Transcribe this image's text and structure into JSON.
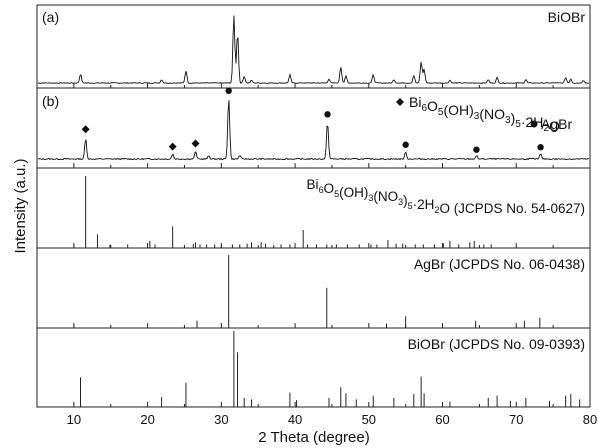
{
  "chart_data": {
    "type": "line",
    "xlabel": "2 Theta (degree)",
    "ylabel": "Intensity (a.u.)",
    "xlim": [
      5,
      80
    ],
    "x_ticks": [
      10,
      20,
      30,
      40,
      50,
      60,
      70,
      80
    ],
    "panels": [
      {
        "panel_label": "(a)",
        "kind": "pattern",
        "name": "BiOBr",
        "peaks": [
          {
            "x": 10.9,
            "y": 0.13
          },
          {
            "x": 21.9,
            "y": 0.05
          },
          {
            "x": 25.2,
            "y": 0.18
          },
          {
            "x": 31.7,
            "y": 1.0
          },
          {
            "x": 32.2,
            "y": 0.75
          },
          {
            "x": 33.1,
            "y": 0.1
          },
          {
            "x": 34.1,
            "y": 0.04
          },
          {
            "x": 39.3,
            "y": 0.12
          },
          {
            "x": 44.6,
            "y": 0.06
          },
          {
            "x": 46.2,
            "y": 0.24
          },
          {
            "x": 46.9,
            "y": 0.1
          },
          {
            "x": 50.6,
            "y": 0.12
          },
          {
            "x": 53.4,
            "y": 0.05
          },
          {
            "x": 56.1,
            "y": 0.11
          },
          {
            "x": 57.1,
            "y": 0.31
          },
          {
            "x": 57.5,
            "y": 0.2
          },
          {
            "x": 61.0,
            "y": 0.04
          },
          {
            "x": 66.2,
            "y": 0.05
          },
          {
            "x": 67.4,
            "y": 0.08
          },
          {
            "x": 71.3,
            "y": 0.05
          },
          {
            "x": 76.7,
            "y": 0.08
          },
          {
            "x": 77.4,
            "y": 0.06
          },
          {
            "x": 79.1,
            "y": 0.04
          }
        ]
      },
      {
        "panel_label": "(b)",
        "kind": "pattern",
        "peaks": [
          {
            "x": 11.6,
            "y": 0.33
          },
          {
            "x": 23.4,
            "y": 0.08
          },
          {
            "x": 26.5,
            "y": 0.12
          },
          {
            "x": 28.3,
            "y": 0.05
          },
          {
            "x": 31.0,
            "y": 1.0
          },
          {
            "x": 32.5,
            "y": 0.06
          },
          {
            "x": 44.4,
            "y": 0.6
          },
          {
            "x": 55.0,
            "y": 0.11
          },
          {
            "x": 64.6,
            "y": 0.05
          },
          {
            "x": 73.3,
            "y": 0.08
          }
        ],
        "markers": [
          {
            "x": 11.6,
            "y": 0.48,
            "symbol": "diamond"
          },
          {
            "x": 23.4,
            "y": 0.2,
            "symbol": "diamond"
          },
          {
            "x": 26.5,
            "y": 0.25,
            "symbol": "diamond"
          },
          {
            "x": 31.0,
            "y": 1.1,
            "symbol": "dot"
          },
          {
            "x": 44.4,
            "y": 0.72,
            "symbol": "dot"
          },
          {
            "x": 55.0,
            "y": 0.23,
            "symbol": "dot"
          },
          {
            "x": 64.6,
            "y": 0.15,
            "symbol": "dot"
          },
          {
            "x": 73.3,
            "y": 0.19,
            "symbol": "dot"
          }
        ],
        "legend": [
          {
            "symbol": "diamond",
            "label": "Bi6O5(OH)3(NO3)5·2H2O"
          },
          {
            "symbol": "dot",
            "label": "AgBr"
          }
        ]
      },
      {
        "kind": "sticks",
        "name": "Bi6O5(OH)3(NO3)5·2H2O (JCPDS No. 54-0627)",
        "sticks": [
          {
            "x": 11.6,
            "y": 1.0
          },
          {
            "x": 13.2,
            "y": 0.19
          },
          {
            "x": 14.9,
            "y": 0.05
          },
          {
            "x": 17.3,
            "y": 0.05
          },
          {
            "x": 20.3,
            "y": 0.1
          },
          {
            "x": 21.0,
            "y": 0.05
          },
          {
            "x": 23.4,
            "y": 0.3
          },
          {
            "x": 26.2,
            "y": 0.06
          },
          {
            "x": 26.5,
            "y": 0.08
          },
          {
            "x": 27.1,
            "y": 0.05
          },
          {
            "x": 28.0,
            "y": 0.05
          },
          {
            "x": 29.1,
            "y": 0.05
          },
          {
            "x": 30.0,
            "y": 0.04
          },
          {
            "x": 31.5,
            "y": 0.05
          },
          {
            "x": 32.5,
            "y": 0.05
          },
          {
            "x": 33.5,
            "y": 0.06
          },
          {
            "x": 34.1,
            "y": 0.08
          },
          {
            "x": 35.4,
            "y": 0.08
          },
          {
            "x": 36.0,
            "y": 0.06
          },
          {
            "x": 37.1,
            "y": 0.04
          },
          {
            "x": 38.1,
            "y": 0.05
          },
          {
            "x": 39.3,
            "y": 0.05
          },
          {
            "x": 41.1,
            "y": 0.25
          },
          {
            "x": 41.7,
            "y": 0.05
          },
          {
            "x": 42.9,
            "y": 0.05
          },
          {
            "x": 44.3,
            "y": 0.05
          },
          {
            "x": 45.6,
            "y": 0.05
          },
          {
            "x": 47.1,
            "y": 0.05
          },
          {
            "x": 48.7,
            "y": 0.05
          },
          {
            "x": 50.3,
            "y": 0.05
          },
          {
            "x": 51.1,
            "y": 0.05
          },
          {
            "x": 52.6,
            "y": 0.11
          },
          {
            "x": 53.7,
            "y": 0.06
          },
          {
            "x": 54.6,
            "y": 0.06
          },
          {
            "x": 56.3,
            "y": 0.05
          },
          {
            "x": 57.4,
            "y": 0.05
          },
          {
            "x": 58.9,
            "y": 0.05
          },
          {
            "x": 60.1,
            "y": 0.07
          },
          {
            "x": 61.0,
            "y": 0.1
          },
          {
            "x": 62.2,
            "y": 0.05
          },
          {
            "x": 63.7,
            "y": 0.08
          },
          {
            "x": 64.3,
            "y": 0.1
          },
          {
            "x": 65.6,
            "y": 0.05
          },
          {
            "x": 66.6,
            "y": 0.05
          }
        ]
      },
      {
        "kind": "sticks",
        "name": "AgBr (JCPDS No. 06-0438)",
        "sticks": [
          {
            "x": 26.7,
            "y": 0.1
          },
          {
            "x": 31.0,
            "y": 1.0
          },
          {
            "x": 44.3,
            "y": 0.55
          },
          {
            "x": 52.4,
            "y": 0.06
          },
          {
            "x": 55.0,
            "y": 0.16
          },
          {
            "x": 64.5,
            "y": 0.1
          },
          {
            "x": 73.2,
            "y": 0.14
          },
          {
            "x": 71.1,
            "y": 0.1
          }
        ]
      },
      {
        "kind": "sticks",
        "name": "BiOBr (JCPDS No. 09-0393)",
        "sticks": [
          {
            "x": 10.9,
            "y": 0.39
          },
          {
            "x": 21.9,
            "y": 0.13
          },
          {
            "x": 25.2,
            "y": 0.32
          },
          {
            "x": 31.7,
            "y": 1.0
          },
          {
            "x": 32.2,
            "y": 0.72
          },
          {
            "x": 33.1,
            "y": 0.12
          },
          {
            "x": 34.1,
            "y": 0.1
          },
          {
            "x": 39.3,
            "y": 0.19
          },
          {
            "x": 40.2,
            "y": 0.09
          },
          {
            "x": 44.6,
            "y": 0.12
          },
          {
            "x": 46.2,
            "y": 0.26
          },
          {
            "x": 46.9,
            "y": 0.18
          },
          {
            "x": 48.3,
            "y": 0.1
          },
          {
            "x": 50.6,
            "y": 0.15
          },
          {
            "x": 53.4,
            "y": 0.12
          },
          {
            "x": 56.1,
            "y": 0.17
          },
          {
            "x": 57.1,
            "y": 0.4
          },
          {
            "x": 57.5,
            "y": 0.18
          },
          {
            "x": 61.0,
            "y": 0.07
          },
          {
            "x": 66.2,
            "y": 0.12
          },
          {
            "x": 67.4,
            "y": 0.15
          },
          {
            "x": 69.2,
            "y": 0.08
          },
          {
            "x": 71.3,
            "y": 0.12
          },
          {
            "x": 74.5,
            "y": 0.08
          },
          {
            "x": 76.7,
            "y": 0.15
          },
          {
            "x": 77.4,
            "y": 0.17
          },
          {
            "x": 78.6,
            "y": 0.1
          }
        ]
      }
    ]
  }
}
